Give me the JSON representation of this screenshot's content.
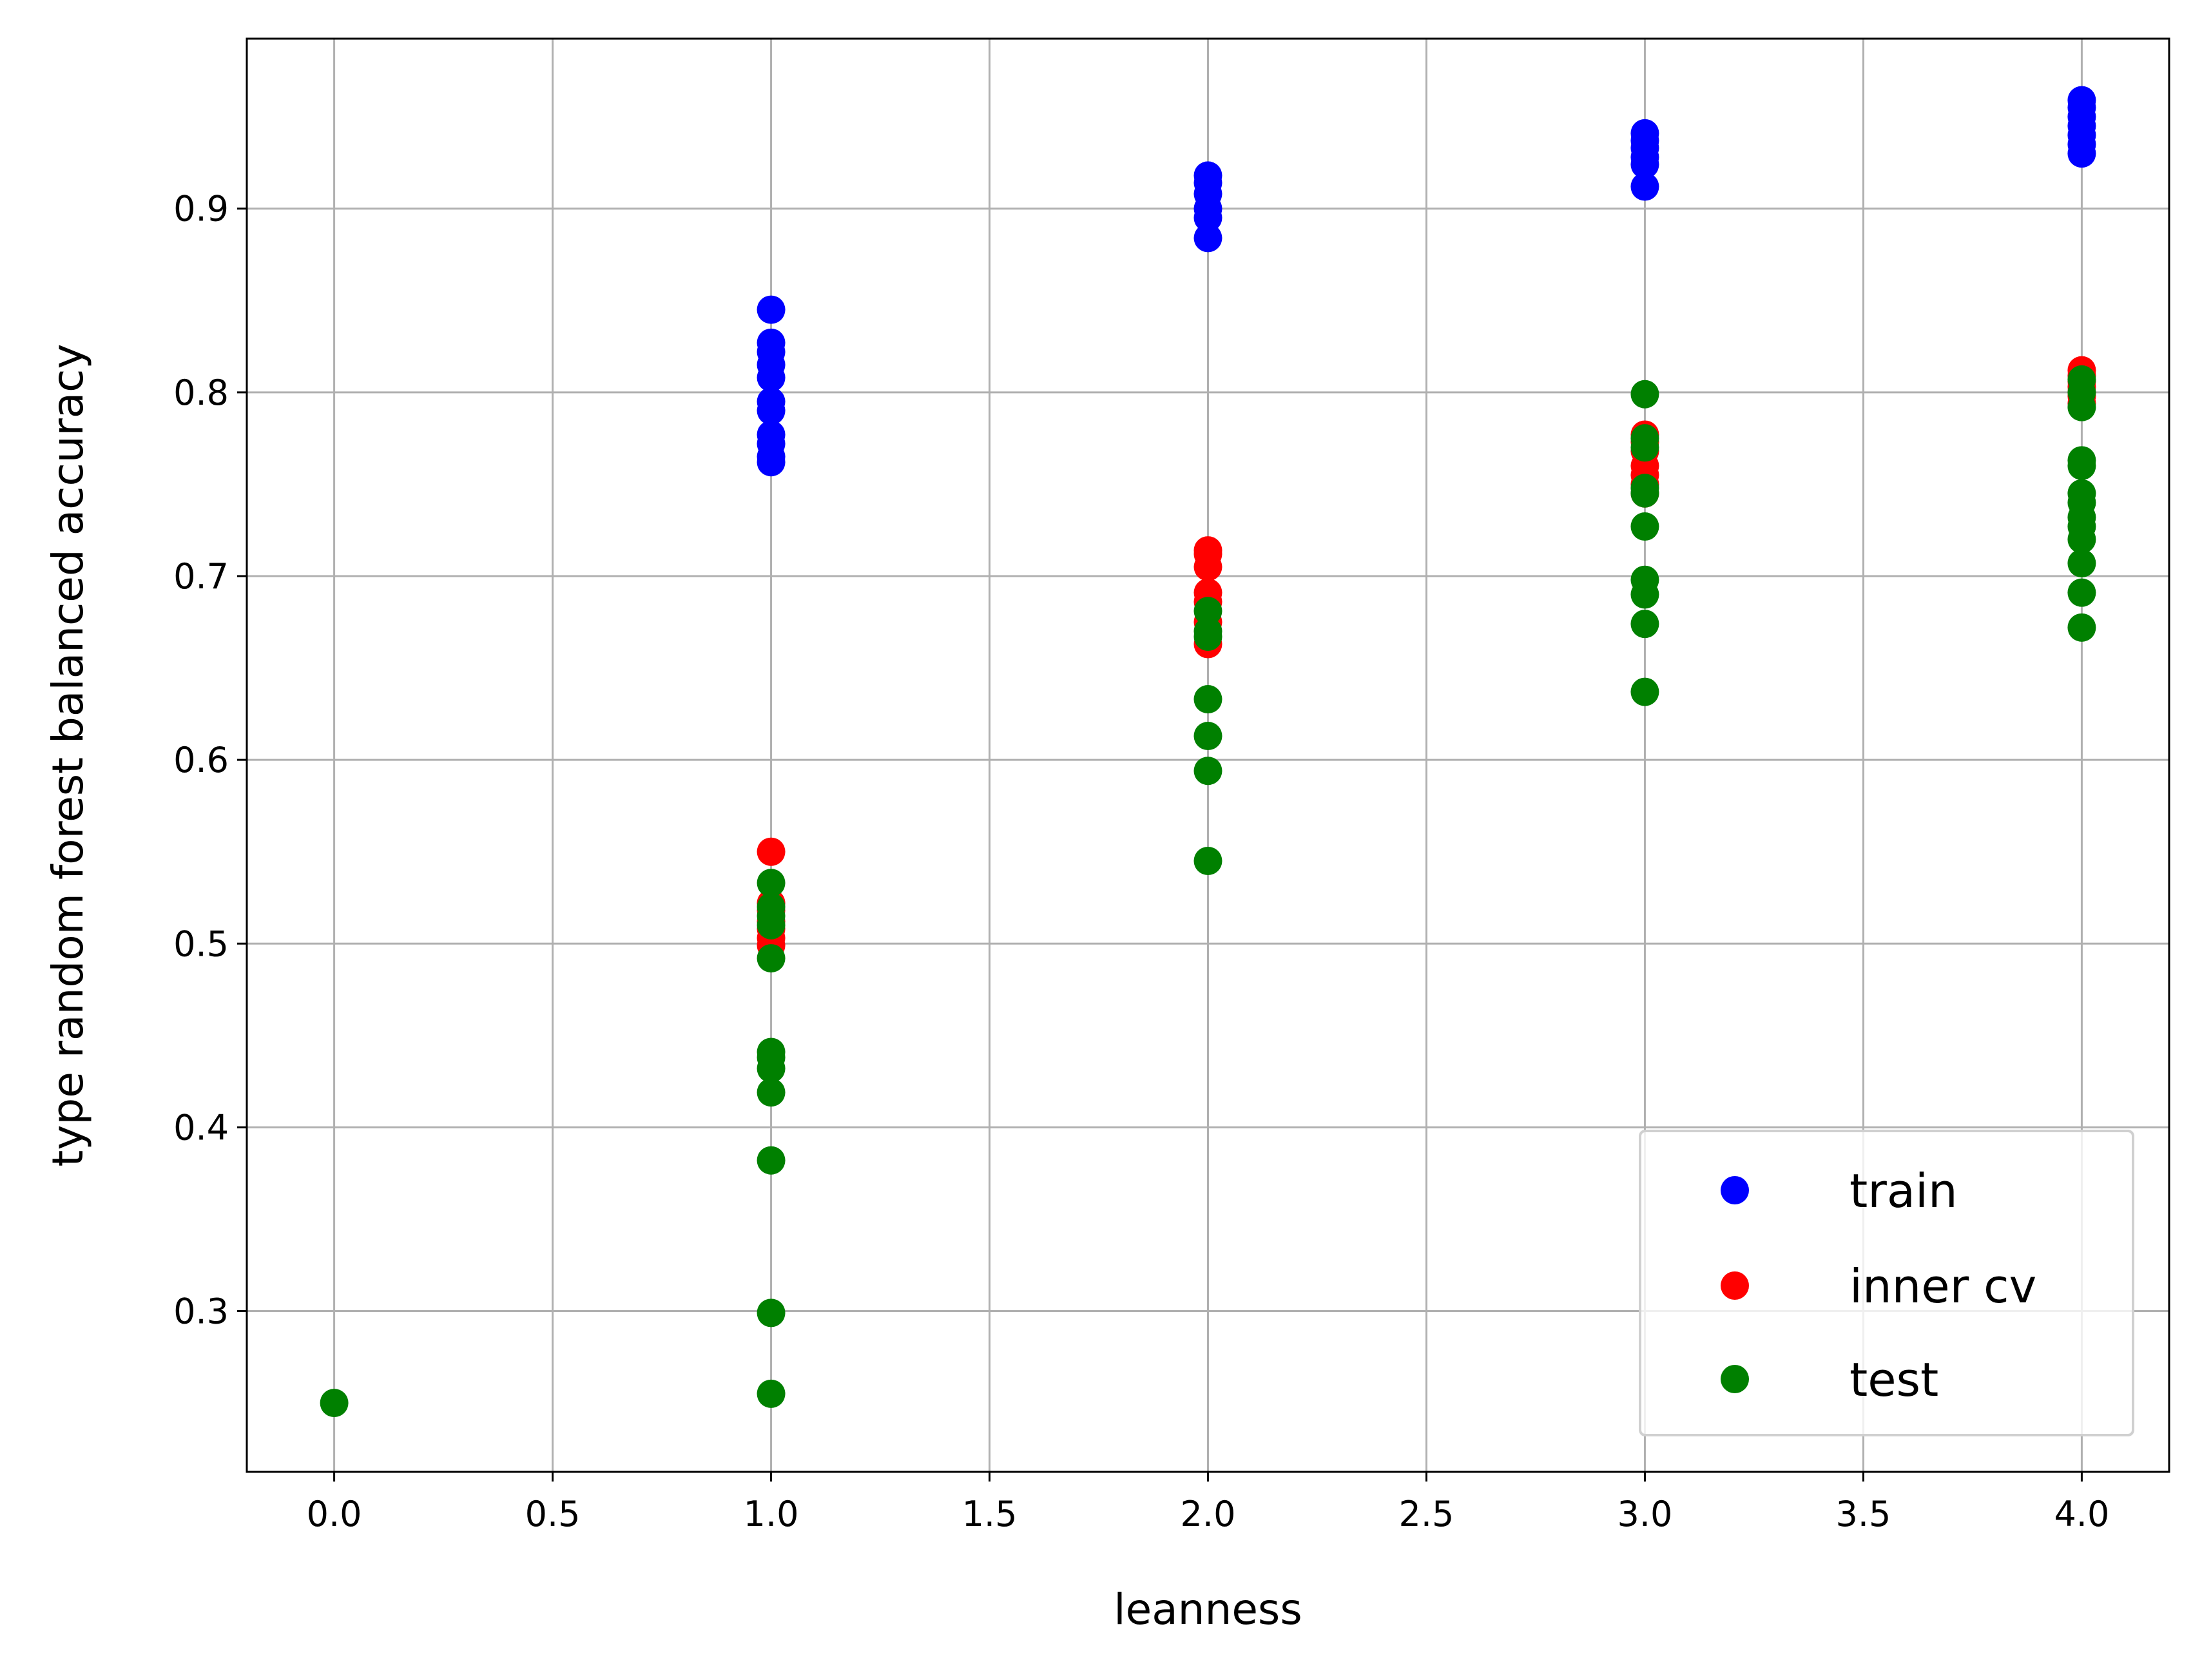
{
  "chart_data": {
    "type": "scatter",
    "xlabel": "leanness",
    "ylabel": "type random forest balanced accuracy",
    "xlim": [
      -0.2,
      4.2
    ],
    "ylim": [
      0.2125,
      0.9925
    ],
    "xticks": [
      "0.0",
      "0.5",
      "1.0",
      "1.5",
      "2.0",
      "2.5",
      "3.0",
      "3.5",
      "4.0"
    ],
    "yticks": [
      "0.3",
      "0.4",
      "0.5",
      "0.6",
      "0.7",
      "0.8",
      "0.9"
    ],
    "grid": true,
    "legend_position": "lower-right",
    "series": [
      {
        "name": "train",
        "color": "#0000ff",
        "points": [
          [
            1,
            0.845
          ],
          [
            1,
            0.827
          ],
          [
            1,
            0.822
          ],
          [
            1,
            0.815
          ],
          [
            1,
            0.808
          ],
          [
            1,
            0.795
          ],
          [
            1,
            0.79
          ],
          [
            1,
            0.777
          ],
          [
            1,
            0.772
          ],
          [
            1,
            0.765
          ],
          [
            1,
            0.762
          ],
          [
            2,
            0.918
          ],
          [
            2,
            0.914
          ],
          [
            2,
            0.908
          ],
          [
            2,
            0.9
          ],
          [
            2,
            0.895
          ],
          [
            2,
            0.884
          ],
          [
            3,
            0.941
          ],
          [
            3,
            0.937
          ],
          [
            3,
            0.933
          ],
          [
            3,
            0.928
          ],
          [
            3,
            0.924
          ],
          [
            3,
            0.912
          ],
          [
            4,
            0.959
          ],
          [
            4,
            0.955
          ],
          [
            4,
            0.95
          ],
          [
            4,
            0.945
          ],
          [
            4,
            0.94
          ],
          [
            4,
            0.935
          ],
          [
            4,
            0.93
          ]
        ]
      },
      {
        "name": "inner cv",
        "color": "#ff0000",
        "points": [
          [
            1,
            0.55
          ],
          [
            1,
            0.522
          ],
          [
            1,
            0.518
          ],
          [
            1,
            0.512
          ],
          [
            1,
            0.508
          ],
          [
            1,
            0.503
          ],
          [
            1,
            0.499
          ],
          [
            2,
            0.714
          ],
          [
            2,
            0.712
          ],
          [
            2,
            0.705
          ],
          [
            2,
            0.691
          ],
          [
            2,
            0.686
          ],
          [
            2,
            0.675
          ],
          [
            2,
            0.663
          ],
          [
            3,
            0.777
          ],
          [
            3,
            0.773
          ],
          [
            3,
            0.768
          ],
          [
            3,
            0.76
          ],
          [
            3,
            0.755
          ],
          [
            3,
            0.75
          ],
          [
            3,
            0.745
          ],
          [
            4,
            0.812
          ],
          [
            4,
            0.809
          ],
          [
            4,
            0.806
          ],
          [
            4,
            0.803
          ],
          [
            4,
            0.8
          ],
          [
            4,
            0.798
          ],
          [
            4,
            0.794
          ]
        ]
      },
      {
        "name": "test",
        "color": "#008000",
        "points": [
          [
            0,
            0.25
          ],
          [
            1,
            0.533
          ],
          [
            1,
            0.52
          ],
          [
            1,
            0.515
          ],
          [
            1,
            0.51
          ],
          [
            1,
            0.492
          ],
          [
            1,
            0.441
          ],
          [
            1,
            0.438
          ],
          [
            1,
            0.432
          ],
          [
            1,
            0.419
          ],
          [
            1,
            0.382
          ],
          [
            1,
            0.299
          ],
          [
            1,
            0.255
          ],
          [
            2,
            0.681
          ],
          [
            2,
            0.67
          ],
          [
            2,
            0.667
          ],
          [
            2,
            0.633
          ],
          [
            2,
            0.613
          ],
          [
            2,
            0.594
          ],
          [
            2,
            0.545
          ],
          [
            3,
            0.799
          ],
          [
            3,
            0.775
          ],
          [
            3,
            0.77
          ],
          [
            3,
            0.748
          ],
          [
            3,
            0.745
          ],
          [
            3,
            0.727
          ],
          [
            3,
            0.698
          ],
          [
            3,
            0.69
          ],
          [
            3,
            0.674
          ],
          [
            3,
            0.637
          ],
          [
            4,
            0.807
          ],
          [
            4,
            0.8
          ],
          [
            4,
            0.792
          ],
          [
            4,
            0.763
          ],
          [
            4,
            0.76
          ],
          [
            4,
            0.745
          ],
          [
            4,
            0.74
          ],
          [
            4,
            0.732
          ],
          [
            4,
            0.727
          ],
          [
            4,
            0.72
          ],
          [
            4,
            0.707
          ],
          [
            4,
            0.691
          ],
          [
            4,
            0.672
          ]
        ]
      }
    ]
  }
}
